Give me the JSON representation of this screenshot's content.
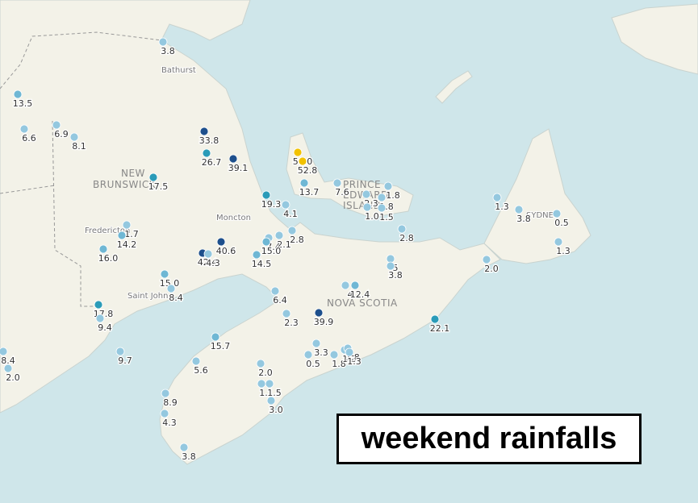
{
  "title": "weekend rainfalls",
  "places": [
    "Bathurst",
    "NEW",
    "BRUNSWICK",
    "Fredericton",
    "Moncton",
    "Saint John",
    "PRINCE",
    "EDWARD",
    "ISLAND",
    "NOVA SCOTIA",
    "SYDNEY"
  ],
  "stations": [
    "3.8",
    "13.5",
    "6.6",
    "6.9",
    "8.1",
    "33.8",
    "26.7",
    "39.1",
    "17.5",
    "19.3",
    "4.1",
    "56.0",
    "52.8",
    "13.7",
    "7.6",
    "2.3",
    "1.8",
    "1.0",
    "1.8",
    "1.5",
    "2.8",
    "1.3",
    "3.8",
    "0.5",
    "1.3",
    "1.7",
    "14.2",
    "16.0",
    "40.6",
    "42.4",
    "4.3",
    "7.4",
    "2.1",
    "2.8",
    "15.0",
    "14.5",
    "15.0",
    "8.4",
    "17.8",
    "9.4",
    "9.7",
    "8.4",
    "2.0",
    "6.4",
    "2.3",
    "39.9",
    "4",
    "12.4",
    "5",
    "3.8",
    "22.1",
    "2.0",
    "15.7",
    "5.6",
    "3.3",
    "0.5",
    "1.8",
    "1.3",
    "1.8",
    "1.3",
    "2.0",
    "1.1",
    "1.5",
    "3.0",
    "8.9",
    "4.3",
    "3.8"
  ]
}
